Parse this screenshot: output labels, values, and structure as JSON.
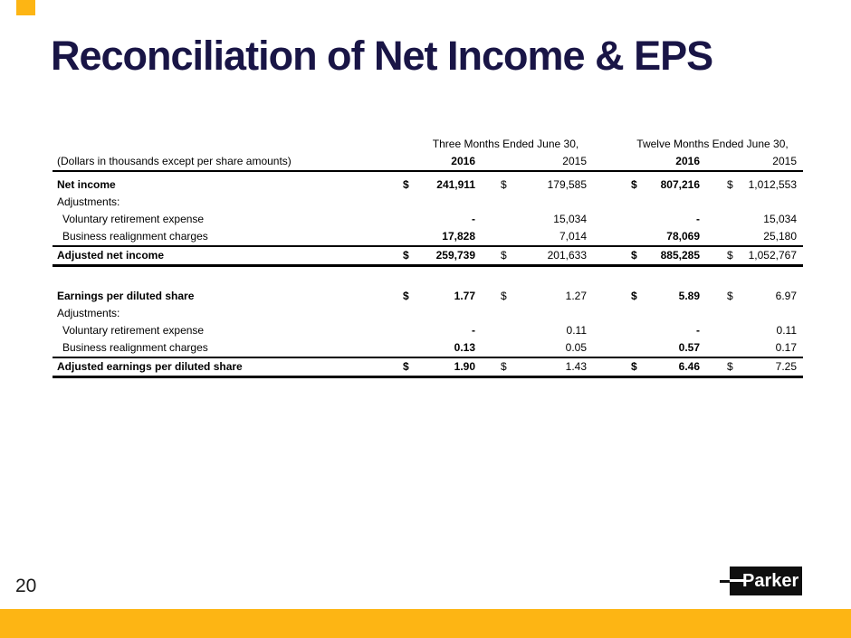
{
  "slide": {
    "title": "Reconciliation of Net Income & EPS",
    "colors": {
      "accent_gold": "#FDB514",
      "title_navy": "#191546",
      "logo_black": "#0f0f0f"
    }
  },
  "table": {
    "note": "(Dollars in thousands except per share amounts)",
    "col_groups": [
      {
        "label": "Three Months Ended June 30,"
      },
      {
        "label": "Twelve Months Ended June 30,"
      }
    ],
    "years": [
      "2016",
      "2015",
      "2016",
      "2015"
    ],
    "sections": [
      {
        "rows": [
          {
            "label": "Net income",
            "d1": "$",
            "v1": "241,911",
            "d2": "$",
            "v2": "179,585",
            "d3": "$",
            "v3": "807,216",
            "d4": "$",
            "v4": "1,012,553"
          },
          {
            "label": "Adjustments:"
          },
          {
            "label": "Voluntary retirement expense",
            "v1": "-",
            "v2": "15,034",
            "v3": "-",
            "v4": "15,034"
          },
          {
            "label": "Business realignment charges",
            "v1": "17,828",
            "v2": "7,014",
            "v3": "78,069",
            "v4": "25,180"
          },
          {
            "label": "Adjusted net income",
            "d1": "$",
            "v1": "259,739",
            "d2": "$",
            "v2": "201,633",
            "d3": "$",
            "v3": "885,285",
            "d4": "$",
            "v4": "1,052,767"
          }
        ]
      },
      {
        "rows": [
          {
            "label": "Earnings per diluted share",
            "d1": "$",
            "v1": "1.77",
            "d2": "$",
            "v2": "1.27",
            "d3": "$",
            "v3": "5.89",
            "d4": "$",
            "v4": "6.97"
          },
          {
            "label": "Adjustments:"
          },
          {
            "label": "Voluntary retirement expense",
            "v1": "-",
            "v2": "0.11",
            "v3": "-",
            "v4": "0.11"
          },
          {
            "label": "Business realignment charges",
            "v1": "0.13",
            "v2": "0.05",
            "v3": "0.57",
            "v4": "0.17"
          },
          {
            "label": "Adjusted earnings per diluted share",
            "d1": "$",
            "v1": "1.90",
            "d2": "$",
            "v2": "1.43",
            "d3": "$",
            "v3": "6.46",
            "d4": "$",
            "v4": "7.25"
          }
        ]
      }
    ]
  },
  "footer": {
    "page_number": "20",
    "logo_text": "Parker"
  }
}
